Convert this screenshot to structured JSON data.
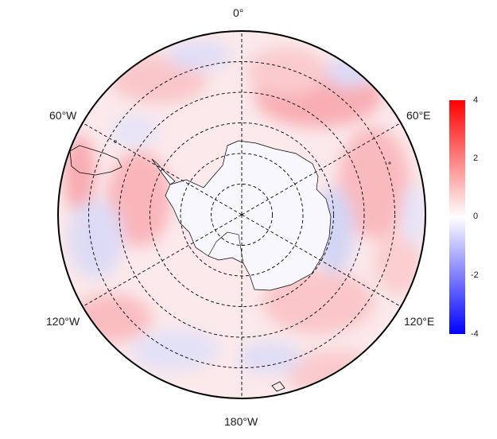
{
  "map": {
    "projection": "south-polar-stereographic",
    "lat_circles_deg_s": [
      40,
      50,
      60,
      70,
      80
    ],
    "meridians_deg": [
      0,
      60,
      120,
      180,
      240,
      300
    ],
    "labels": {
      "top": "0°",
      "upper_right": "60°E",
      "lower_right": "120°E",
      "bottom": "180°W",
      "lower_left": "120°W",
      "upper_left": "60°W"
    }
  },
  "colorbar": {
    "min": -4,
    "max": 4,
    "ticks": [
      "4",
      "2",
      "0",
      "-2",
      "-4"
    ],
    "colors": {
      "low": "#0000ff",
      "mid": "#ffffff",
      "high": "#ff0000"
    }
  }
}
